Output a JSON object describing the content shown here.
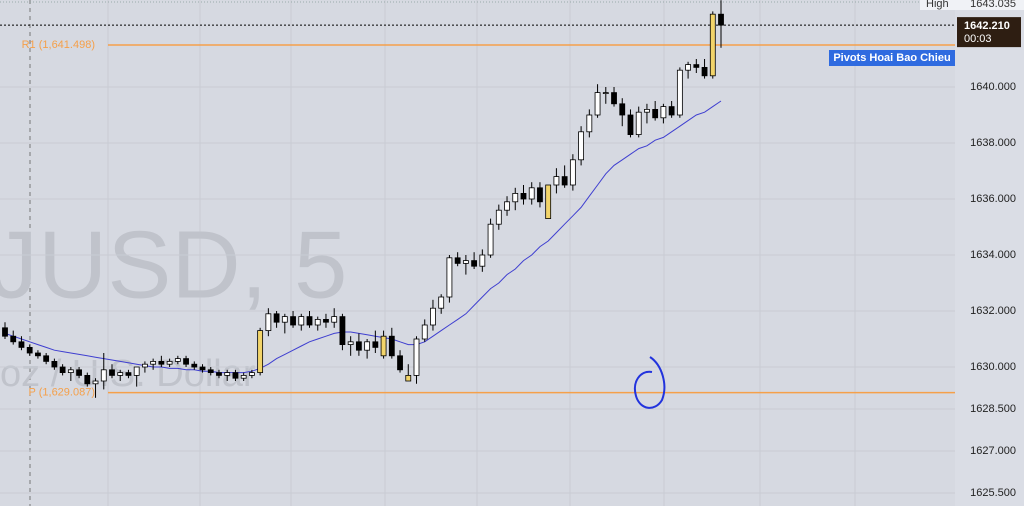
{
  "chart_data": {
    "type": "candlestick",
    "watermark": "JUSD, 5",
    "watermark_sub": "oz / U.S. Dollar",
    "ylim": [
      1625.036,
      1643.107
    ],
    "yticks": [
      {
        "value": 1625.5,
        "label": "1625.500"
      },
      {
        "value": 1627,
        "label": "1627.000"
      },
      {
        "value": 1628.5,
        "label": "1628.500"
      },
      {
        "value": 1630,
        "label": "1630.000"
      },
      {
        "value": 1632,
        "label": "1632.000"
      },
      {
        "value": 1634,
        "label": "1634.000"
      },
      {
        "value": 1636,
        "label": "1636.000"
      },
      {
        "value": 1638,
        "label": "1638.000"
      },
      {
        "value": 1640,
        "label": "1640.000"
      }
    ],
    "grid": true,
    "up_color": "#ffffff",
    "down_color": "#000000",
    "highlight_color": "#f2d46a",
    "highlighted": [
      31,
      46,
      49,
      66,
      86
    ],
    "open": [
      1631.4,
      1631.1,
      1630.9,
      1630.7,
      1630.5,
      1630.4,
      1630.2,
      1630.0,
      1629.8,
      1629.9,
      1629.7,
      1629.4,
      1629.5,
      1629.9,
      1629.7,
      1629.8,
      1629.7,
      1630.0,
      1630.1,
      1630.2,
      1630.1,
      1630.2,
      1630.3,
      1630.1,
      1630.0,
      1629.9,
      1629.8,
      1629.7,
      1629.8,
      1629.6,
      1629.7,
      1629.8,
      1631.3,
      1631.9,
      1631.6,
      1631.8,
      1631.5,
      1631.8,
      1631.5,
      1631.7,
      1631.6,
      1631.8,
      1630.8,
      1630.9,
      1630.6,
      1630.9,
      1630.4,
      1631.1,
      1630.4,
      1629.7,
      1629.7,
      1631.0,
      1631.5,
      1632.1,
      1632.5,
      1633.9,
      1633.7,
      1633.8,
      1633.6,
      1634.0,
      1635.1,
      1635.6,
      1635.9,
      1636.2,
      1636.0,
      1636.4,
      1635.3,
      1636.5,
      1636.8,
      1636.5,
      1637.4,
      1638.4,
      1639.0,
      1639.8,
      1639.8,
      1639.4,
      1639.0,
      1638.3,
      1639.1,
      1639.2,
      1638.9,
      1639.3,
      1639.0,
      1640.6,
      1640.8,
      1640.7,
      1640.4,
      1642.6
    ],
    "high": [
      1631.6,
      1631.3,
      1631.1,
      1630.8,
      1630.6,
      1630.5,
      1630.3,
      1630.1,
      1630.0,
      1630.0,
      1629.8,
      1629.6,
      1630.5,
      1630.1,
      1629.9,
      1629.9,
      1629.9,
      1630.2,
      1630.3,
      1630.4,
      1630.3,
      1630.4,
      1630.4,
      1630.2,
      1630.1,
      1630.0,
      1629.9,
      1629.9,
      1629.9,
      1629.8,
      1629.9,
      1631.4,
      1632.1,
      1632.0,
      1631.9,
      1632.0,
      1631.9,
      1632.0,
      1631.8,
      1631.9,
      1632.1,
      1631.9,
      1631.1,
      1631.2,
      1631.0,
      1631.3,
      1631.3,
      1631.4,
      1630.6,
      1630.1,
      1631.1,
      1631.7,
      1632.4,
      1632.6,
      1634.0,
      1634.1,
      1634.0,
      1634.1,
      1634.2,
      1635.3,
      1635.8,
      1636.1,
      1636.4,
      1636.5,
      1636.6,
      1636.6,
      1636.5,
      1637.1,
      1637.2,
      1637.6,
      1638.6,
      1639.2,
      1640.1,
      1640.0,
      1640.0,
      1639.6,
      1639.2,
      1639.3,
      1639.4,
      1639.5,
      1639.4,
      1639.5,
      1640.7,
      1640.9,
      1641.0,
      1641.0,
      1642.7,
      1643.1
    ],
    "low": [
      1631.0,
      1630.8,
      1630.6,
      1630.4,
      1630.3,
      1630.1,
      1629.9,
      1629.7,
      1629.5,
      1629.6,
      1629.3,
      1628.9,
      1629.2,
      1629.6,
      1629.5,
      1629.6,
      1629.3,
      1629.8,
      1629.9,
      1630.0,
      1630.0,
      1630.1,
      1630.0,
      1629.9,
      1629.8,
      1629.7,
      1629.6,
      1629.5,
      1629.5,
      1629.5,
      1629.6,
      1629.7,
      1631.1,
      1631.4,
      1631.2,
      1631.4,
      1631.3,
      1631.4,
      1631.3,
      1631.4,
      1631.4,
      1630.6,
      1630.4,
      1630.4,
      1630.3,
      1630.5,
      1630.3,
      1630.3,
      1629.8,
      1629.5,
      1629.4,
      1630.9,
      1631.3,
      1631.9,
      1632.3,
      1633.6,
      1633.3,
      1633.5,
      1633.4,
      1633.9,
      1634.9,
      1635.4,
      1635.6,
      1635.8,
      1635.8,
      1635.7,
      1635.3,
      1636.2,
      1636.4,
      1636.3,
      1637.2,
      1638.2,
      1638.9,
      1639.4,
      1639.3,
      1638.6,
      1638.2,
      1638.2,
      1638.7,
      1638.8,
      1638.7,
      1638.9,
      1638.9,
      1640.3,
      1640.5,
      1640.3,
      1640.3,
      1641.4
    ],
    "close": [
      1631.1,
      1630.9,
      1630.7,
      1630.5,
      1630.4,
      1630.2,
      1630.0,
      1629.8,
      1629.9,
      1629.7,
      1629.4,
      1629.5,
      1629.9,
      1629.7,
      1629.8,
      1629.7,
      1630.0,
      1630.1,
      1630.2,
      1630.1,
      1630.2,
      1630.3,
      1630.1,
      1630.0,
      1629.9,
      1629.8,
      1629.7,
      1629.8,
      1629.6,
      1629.7,
      1629.8,
      1631.3,
      1631.9,
      1631.6,
      1631.8,
      1631.5,
      1631.8,
      1631.5,
      1631.7,
      1631.6,
      1631.8,
      1630.8,
      1630.9,
      1630.6,
      1630.9,
      1630.7,
      1631.1,
      1630.4,
      1629.9,
      1629.5,
      1631.0,
      1631.5,
      1632.1,
      1632.5,
      1633.9,
      1633.7,
      1633.8,
      1633.6,
      1634.0,
      1635.1,
      1635.6,
      1635.9,
      1636.2,
      1636.0,
      1636.4,
      1635.9,
      1636.5,
      1636.8,
      1636.5,
      1637.4,
      1638.4,
      1639.0,
      1639.8,
      1639.8,
      1639.4,
      1639.0,
      1638.3,
      1639.1,
      1639.2,
      1638.9,
      1639.3,
      1639.0,
      1640.6,
      1640.8,
      1640.7,
      1640.4,
      1642.6,
      1642.21
    ],
    "ma": {
      "color": "#3f3fd0",
      "values": [
        1631.2,
        1631.1,
        1631.0,
        1630.9,
        1630.8,
        1630.7,
        1630.6,
        1630.55,
        1630.5,
        1630.45,
        1630.4,
        1630.35,
        1630.3,
        1630.25,
        1630.2,
        1630.15,
        1630.1,
        1630.05,
        1630.0,
        1630.0,
        1629.95,
        1629.95,
        1629.9,
        1629.9,
        1629.85,
        1629.85,
        1629.8,
        1629.8,
        1629.8,
        1629.8,
        1629.85,
        1629.95,
        1630.1,
        1630.3,
        1630.45,
        1630.6,
        1630.75,
        1630.9,
        1631.0,
        1631.1,
        1631.2,
        1631.25,
        1631.25,
        1631.2,
        1631.15,
        1631.1,
        1631.05,
        1631.0,
        1630.9,
        1630.8,
        1630.8,
        1630.9,
        1631.1,
        1631.3,
        1631.5,
        1631.7,
        1631.9,
        1632.2,
        1632.5,
        1632.8,
        1633.0,
        1633.3,
        1633.5,
        1633.8,
        1634.0,
        1634.3,
        1634.5,
        1634.8,
        1635.1,
        1635.4,
        1635.7,
        1636.1,
        1636.5,
        1636.9,
        1637.2,
        1637.4,
        1637.6,
        1637.8,
        1637.9,
        1638.1,
        1638.2,
        1638.4,
        1638.6,
        1638.8,
        1639.0,
        1639.1,
        1639.3,
        1639.5
      ]
    },
    "pivots": [
      {
        "name": "R1 (1,641.498)",
        "value": 1641.498,
        "color": "#f5a04a"
      },
      {
        "name": "P (1,629.087)",
        "value": 1629.087,
        "color": "#f5a04a"
      }
    ],
    "indicator_label": "Pivots Hoai Bao Chieu",
    "high_label": "High",
    "high_price": {
      "value": 1643.035,
      "label": "1643.035"
    },
    "last_price": {
      "value": 1642.21,
      "label": "1642.210"
    },
    "countdown": "00:03"
  }
}
